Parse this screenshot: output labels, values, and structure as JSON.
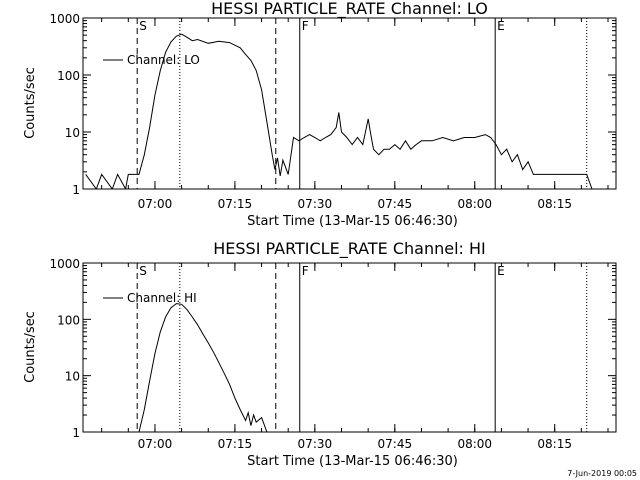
{
  "chart_data": [
    {
      "type": "line",
      "title": "HESSI PARTICLE_RATE Channel: LO",
      "xlabel": "Start Time (13-Mar-15 06:46:30)",
      "ylabel": "Counts/sec",
      "x_range": [
        "06:46:30",
        "08:26:30"
      ],
      "x_ticks": [
        "07:00",
        "07:15",
        "07:30",
        "07:45",
        "08:00",
        "08:15"
      ],
      "ylim": [
        1,
        1000
      ],
      "yscale": "log",
      "y_ticks": [
        "1",
        "10",
        "100",
        "1000"
      ],
      "legend": "top-left",
      "series": [
        {
          "name": "Channel: LO",
          "points": [
            [
              "06:47:00",
              1.8
            ],
            [
              "06:49:00",
              1.0
            ],
            [
              "06:50:00",
              1.8
            ],
            [
              "06:52:00",
              1.0
            ],
            [
              "06:53:00",
              1.8
            ],
            [
              "06:54:30",
              1.0
            ],
            [
              "06:55:00",
              1.8
            ],
            [
              "06:57:00",
              1.8
            ],
            [
              "06:58:00",
              4
            ],
            [
              "06:59:00",
              12
            ],
            [
              "07:00:00",
              45
            ],
            [
              "07:01:00",
              120
            ],
            [
              "07:02:00",
              250
            ],
            [
              "07:03:00",
              380
            ],
            [
              "07:04:00",
              480
            ],
            [
              "07:05:00",
              520
            ],
            [
              "07:06:00",
              460
            ],
            [
              "07:07:00",
              400
            ],
            [
              "07:08:00",
              420
            ],
            [
              "07:10:00",
              360
            ],
            [
              "07:12:00",
              390
            ],
            [
              "07:14:00",
              370
            ],
            [
              "07:16:00",
              300
            ],
            [
              "07:17:00",
              230
            ],
            [
              "07:18:00",
              180
            ],
            [
              "07:19:00",
              120
            ],
            [
              "07:20:00",
              55
            ],
            [
              "07:21:00",
              15
            ],
            [
              "07:22:00",
              4
            ],
            [
              "07:22:30",
              2.2
            ],
            [
              "07:23:00",
              3.5
            ],
            [
              "07:23:30",
              1.7
            ],
            [
              "07:24:00",
              3.2
            ],
            [
              "07:25:00",
              1.8
            ],
            [
              "07:26:00",
              8
            ],
            [
              "07:27:00",
              7
            ],
            [
              "07:28:00",
              8
            ],
            [
              "07:29:00",
              9
            ],
            [
              "07:30:00",
              8
            ],
            [
              "07:31:00",
              7
            ],
            [
              "07:32:00",
              8
            ],
            [
              "07:33:00",
              9
            ],
            [
              "07:34:00",
              12
            ],
            [
              "07:34:30",
              22
            ],
            [
              "07:35:00",
              10
            ],
            [
              "07:36:00",
              8
            ],
            [
              "07:37:00",
              6
            ],
            [
              "07:38:00",
              8
            ],
            [
              "07:39:00",
              6
            ],
            [
              "07:40:00",
              17
            ],
            [
              "07:40:30",
              9
            ],
            [
              "07:41:00",
              5
            ],
            [
              "07:42:00",
              4
            ],
            [
              "07:43:00",
              5
            ],
            [
              "07:44:00",
              5
            ],
            [
              "07:45:00",
              6
            ],
            [
              "07:46:00",
              5
            ],
            [
              "07:47:00",
              7
            ],
            [
              "07:48:00",
              5
            ],
            [
              "07:49:00",
              6
            ],
            [
              "07:50:00",
              7
            ],
            [
              "07:52:00",
              7
            ],
            [
              "07:54:00",
              8
            ],
            [
              "07:56:00",
              7
            ],
            [
              "07:58:00",
              8
            ],
            [
              "08:00:00",
              8
            ],
            [
              "08:02:00",
              9
            ],
            [
              "08:03:00",
              8
            ],
            [
              "08:04:00",
              6
            ],
            [
              "08:05:00",
              4
            ],
            [
              "08:06:00",
              5
            ],
            [
              "08:07:00",
              3
            ],
            [
              "08:08:00",
              4
            ],
            [
              "08:09:00",
              2.2
            ],
            [
              "08:10:00",
              3
            ],
            [
              "08:11:00",
              1.8
            ],
            [
              "08:13:00",
              1.8
            ],
            [
              "08:16:00",
              1.8
            ],
            [
              "08:19:00",
              1.8
            ],
            [
              "08:21:00",
              1.8
            ],
            [
              "08:22:00",
              1.0
            ]
          ]
        }
      ],
      "markers": [
        {
          "label": "S",
          "time": "06:56:40",
          "style": "dashed"
        },
        {
          "label": "",
          "time": "07:04:40",
          "style": "dotted"
        },
        {
          "label": "",
          "time": "07:22:40",
          "style": "dashed"
        },
        {
          "label": "F",
          "time": "07:27:10",
          "style": "solid"
        },
        {
          "label": "E",
          "time": "08:03:50",
          "style": "solid"
        },
        {
          "label": "",
          "time": "08:21:00",
          "style": "dotted"
        }
      ]
    },
    {
      "type": "line",
      "title": "HESSI PARTICLE_RATE Channel: HI",
      "xlabel": "Start Time (13-Mar-15 06:46:30)",
      "ylabel": "Counts/sec",
      "x_range": [
        "06:46:30",
        "08:26:30"
      ],
      "x_ticks": [
        "07:00",
        "07:15",
        "07:30",
        "07:45",
        "08:00",
        "08:15"
      ],
      "ylim": [
        1,
        1000
      ],
      "yscale": "log",
      "y_ticks": [
        "1",
        "10",
        "100",
        "1000"
      ],
      "legend": "top-left",
      "series": [
        {
          "name": "Channel: HI",
          "points": [
            [
              "06:57:00",
              1.0
            ],
            [
              "06:58:00",
              2.5
            ],
            [
              "06:59:00",
              8
            ],
            [
              "07:00:00",
              25
            ],
            [
              "07:01:00",
              60
            ],
            [
              "07:02:00",
              110
            ],
            [
              "07:03:00",
              160
            ],
            [
              "07:04:00",
              190
            ],
            [
              "07:05:00",
              185
            ],
            [
              "07:06:00",
              150
            ],
            [
              "07:07:00",
              110
            ],
            [
              "07:08:00",
              80
            ],
            [
              "07:09:00",
              55
            ],
            [
              "07:10:00",
              38
            ],
            [
              "07:11:00",
              26
            ],
            [
              "07:12:00",
              17
            ],
            [
              "07:13:00",
              11
            ],
            [
              "07:14:00",
              7
            ],
            [
              "07:15:00",
              4
            ],
            [
              "07:16:00",
              2.5
            ],
            [
              "07:17:00",
              1.6
            ],
            [
              "07:17:30",
              2.2
            ],
            [
              "07:18:00",
              1.3
            ],
            [
              "07:18:30",
              2.0
            ],
            [
              "07:19:00",
              1.5
            ],
            [
              "07:20:00",
              1.8
            ],
            [
              "07:21:00",
              1.0
            ]
          ]
        }
      ],
      "markers": [
        {
          "label": "S",
          "time": "06:56:40",
          "style": "dashed"
        },
        {
          "label": "",
          "time": "07:04:40",
          "style": "dotted"
        },
        {
          "label": "",
          "time": "07:22:40",
          "style": "dashed"
        },
        {
          "label": "F",
          "time": "07:27:10",
          "style": "solid"
        },
        {
          "label": "E",
          "time": "08:03:50",
          "style": "solid"
        },
        {
          "label": "",
          "time": "08:21:00",
          "style": "dotted"
        }
      ]
    }
  ],
  "footer": {
    "timestamp": "7-Jun-2019 00:05"
  }
}
